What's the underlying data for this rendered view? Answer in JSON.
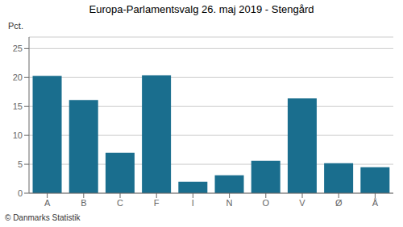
{
  "chart_data": {
    "type": "bar",
    "title": "Europa-Parlamentsvalg 26. maj 2019 - Stengård",
    "categories": [
      "A",
      "B",
      "C",
      "F",
      "I",
      "N",
      "O",
      "V",
      "Ø",
      "Å"
    ],
    "values": [
      20.3,
      16.1,
      7.0,
      20.4,
      2.0,
      3.1,
      5.6,
      16.4,
      5.2,
      4.5
    ],
    "color": "#1a6e8e",
    "ylabel": "Pct.",
    "ylim": [
      0,
      27
    ],
    "yticks": [
      0,
      5,
      10,
      15,
      20,
      25
    ],
    "grid": true,
    "footer": "© Danmarks Statistik"
  }
}
